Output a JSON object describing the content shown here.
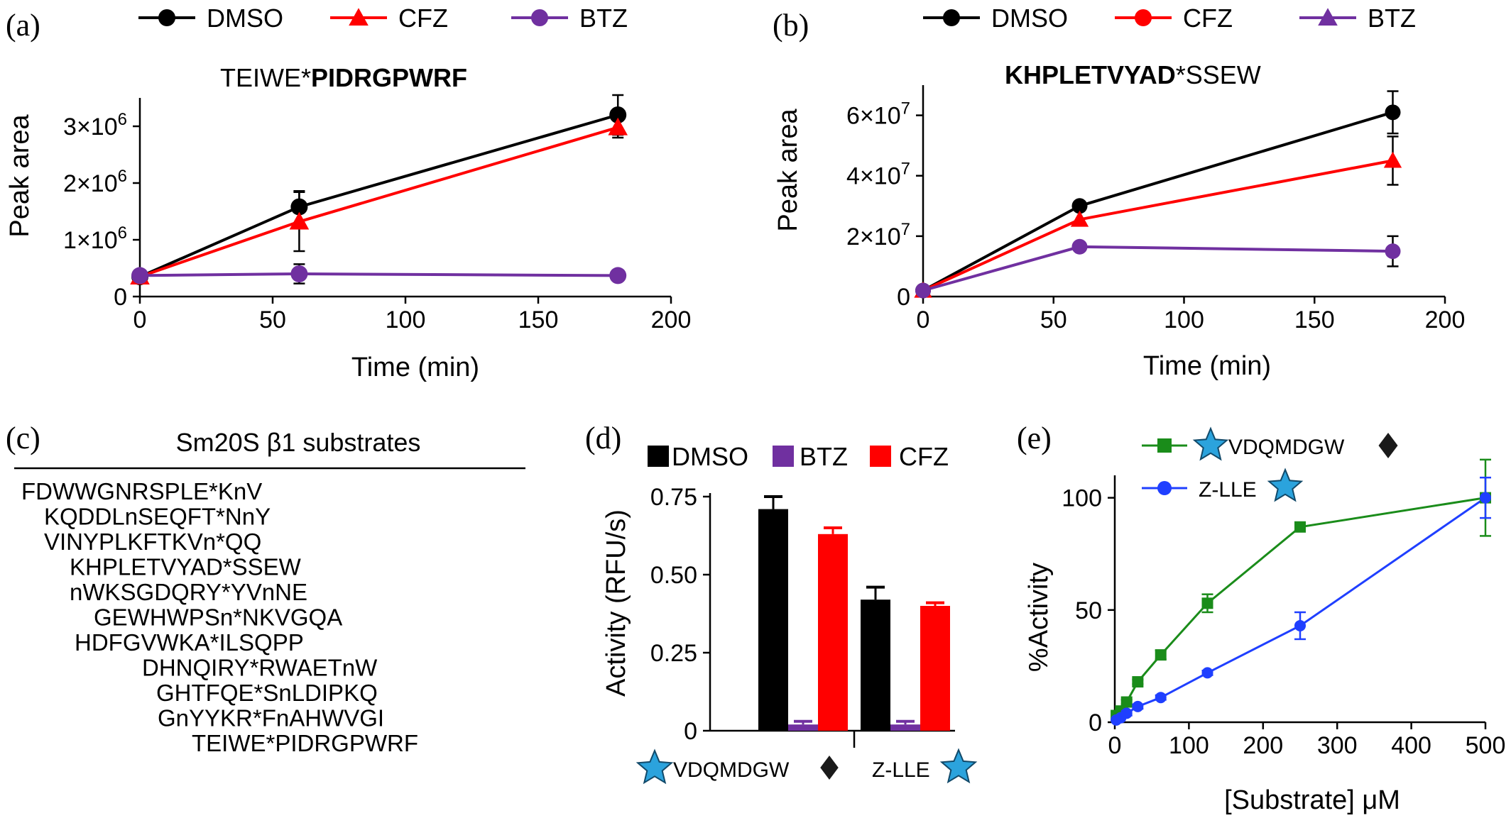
{
  "chart_data": [
    {
      "id": "a",
      "panel_label": "(a)",
      "type": "line",
      "title_plain": "TEIWE*",
      "title_bold": "PIDRGPWRF",
      "xlabel": "Time (min)",
      "ylabel": "Peak area",
      "xlim": [
        0,
        200
      ],
      "ylim": [
        0,
        3500000
      ],
      "x_ticks": [
        "0",
        "50",
        "100",
        "150",
        "200"
      ],
      "y_ticks": [
        {
          "value": 0,
          "mant": "0",
          "exp": ""
        },
        {
          "value": 1000000,
          "mant": "1×10",
          "exp": "6"
        },
        {
          "value": 2000000,
          "mant": "2×10",
          "exp": "6"
        },
        {
          "value": 3000000,
          "mant": "3×10",
          "exp": "6"
        }
      ],
      "legend": [
        "DMSO",
        "CFZ",
        "BTZ"
      ],
      "series": [
        {
          "name": "DMSO",
          "color": "#000000",
          "marker": "circle",
          "x": [
            0,
            60,
            180
          ],
          "y": [
            350000,
            1580000,
            3200000
          ],
          "err": [
            0,
            280000,
            350000
          ]
        },
        {
          "name": "CFZ",
          "color": "#ff0000",
          "marker": "triangle",
          "x": [
            0,
            60,
            180
          ],
          "y": [
            350000,
            1320000,
            2980000
          ],
          "err": [
            0,
            520000,
            180000
          ]
        },
        {
          "name": "BTZ",
          "color": "#7030a0",
          "marker": "circle",
          "x": [
            0,
            60,
            180
          ],
          "y": [
            370000,
            400000,
            370000
          ],
          "err": [
            0,
            170000,
            0
          ]
        }
      ]
    },
    {
      "id": "b",
      "panel_label": "(b)",
      "type": "line",
      "title_bold": "KHPLETVYAD",
      "title_plain": "*SSEW",
      "xlabel": "Time (min)",
      "ylabel": "Peak area",
      "xlim": [
        0,
        200
      ],
      "ylim": [
        0,
        70000000
      ],
      "x_ticks": [
        "0",
        "50",
        "100",
        "150",
        "200"
      ],
      "y_ticks": [
        {
          "value": 0,
          "mant": "0",
          "exp": ""
        },
        {
          "value": 20000000,
          "mant": "2×10",
          "exp": "7"
        },
        {
          "value": 40000000,
          "mant": "4×10",
          "exp": "7"
        },
        {
          "value": 60000000,
          "mant": "6×10",
          "exp": "7"
        }
      ],
      "legend": [
        "DMSO",
        "CFZ",
        "BTZ"
      ],
      "series": [
        {
          "name": "DMSO",
          "color": "#000000",
          "marker": "circle",
          "x": [
            0,
            60,
            180
          ],
          "y": [
            2000000,
            30000000,
            61000000
          ],
          "err": [
            0,
            0,
            7000000
          ]
        },
        {
          "name": "CFZ",
          "color": "#ff0000",
          "marker": "triangle",
          "x": [
            0,
            60,
            180
          ],
          "y": [
            2000000,
            25500000,
            45000000
          ],
          "err": [
            0,
            0,
            8000000
          ]
        },
        {
          "name": "BTZ",
          "color": "#7030a0",
          "marker": "circle",
          "x": [
            0,
            60,
            180
          ],
          "y": [
            2000000,
            16500000,
            15000000
          ],
          "err": [
            0,
            0,
            5000000
          ]
        }
      ]
    },
    {
      "id": "d",
      "panel_label": "(d)",
      "type": "bar",
      "ylabel": "Activity (RFU/s)",
      "ylim": [
        0,
        0.75
      ],
      "y_ticks": [
        "0",
        "0.25",
        "0.50",
        "0.75"
      ],
      "legend": [
        "DMSO",
        "BTZ",
        "CFZ"
      ],
      "categories": [
        "VDQMDGW",
        "Z-LLE"
      ],
      "series": [
        {
          "name": "DMSO",
          "color": "#000000",
          "values": [
            0.71,
            0.42
          ],
          "err": [
            0.04,
            0.04
          ]
        },
        {
          "name": "BTZ",
          "color": "#7030a0",
          "values": [
            0.02,
            0.02
          ],
          "err": [
            0.01,
            0.01
          ]
        },
        {
          "name": "CFZ",
          "color": "#ff0000",
          "values": [
            0.63,
            0.4
          ],
          "err": [
            0.02,
            0.01
          ]
        }
      ]
    },
    {
      "id": "e",
      "panel_label": "(e)",
      "type": "line",
      "xlabel": "[Substrate] μM",
      "ylabel": "%Activity",
      "xlim": [
        0,
        500
      ],
      "ylim": [
        0,
        110
      ],
      "x_ticks": [
        "0",
        "100",
        "200",
        "300",
        "400",
        "500"
      ],
      "y_ticks": [
        "0",
        "50",
        "100"
      ],
      "legend": [
        "VDQMDGW",
        "Z-LLE"
      ],
      "series": [
        {
          "name": "VDQMDGW",
          "color": "#1a8c1a",
          "marker": "square",
          "x": [
            2,
            8,
            16,
            31,
            62,
            125,
            250,
            500
          ],
          "y": [
            3,
            5,
            9,
            18,
            30,
            53,
            87,
            100
          ],
          "err": [
            0,
            1,
            1,
            1,
            2,
            4,
            2,
            17
          ]
        },
        {
          "name": "Z-LLE",
          "color": "#1f3fff",
          "marker": "circle",
          "x": [
            2,
            8,
            16,
            31,
            62,
            125,
            250,
            500
          ],
          "y": [
            1,
            2,
            4,
            7,
            11,
            22,
            43,
            100
          ],
          "err": [
            0,
            0,
            1,
            1,
            1,
            1,
            6,
            9
          ]
        }
      ]
    }
  ],
  "panel_c": {
    "label": "(c)",
    "title": "Sm20S β1 substrates",
    "rows": [
      "FDWWGNRSPLE*KnV",
      "KQDDLnSEQFT*NnY",
      "VINYPLKFTKVn*QQ",
      "KHPLETVYAD*SSEW",
      "nWKSGDQRY*YVnNE",
      "GEWHWPSn*NKVGQA",
      "HDFGVWKA*ILSQPP",
      "DHNQIRY*RWAETnW",
      "GHTFQE*SnLDIPKQ",
      "GnYYKR*FnAHWVGI",
      "TEIWE*PIDRGPWRF"
    ]
  },
  "colors": {
    "star": "#2ba3dd",
    "diamond": "#1a1a1a"
  }
}
